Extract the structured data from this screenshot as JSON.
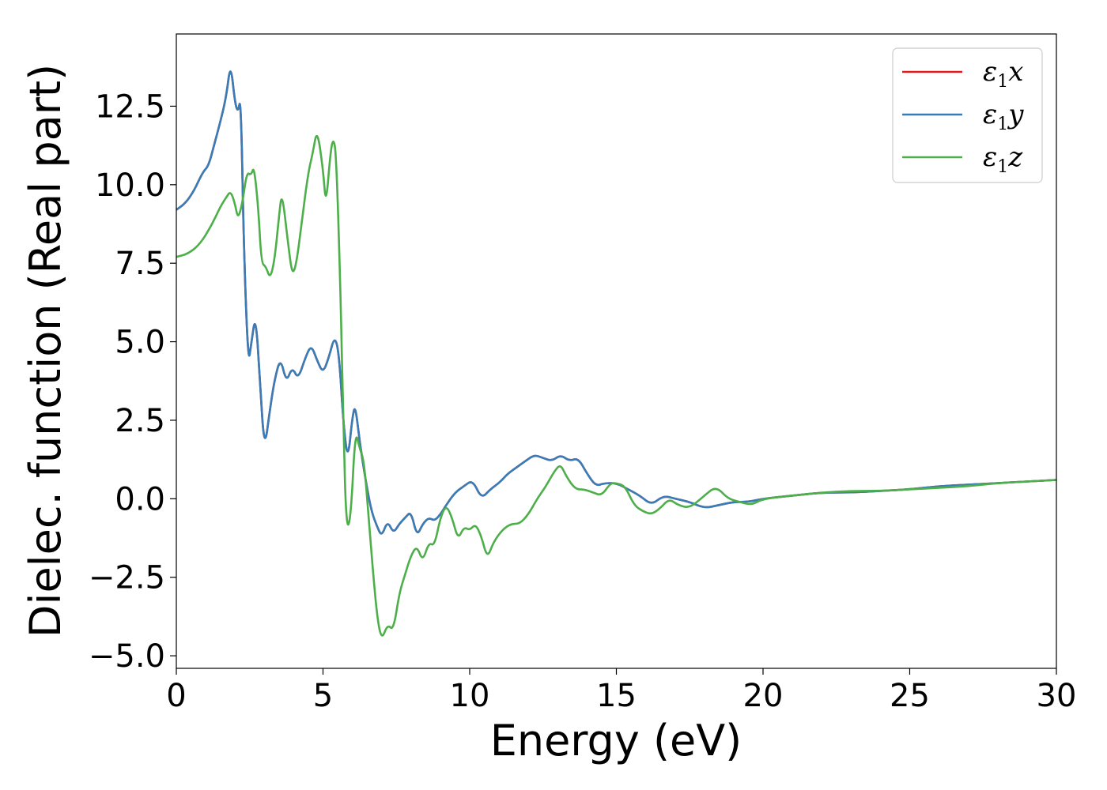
{
  "chart_data": {
    "type": "line",
    "xlabel": "Energy (eV)",
    "ylabel": "Dielec. function (Real part)",
    "xlim": [
      0,
      30
    ],
    "ylim": [
      -5.4,
      14.8
    ],
    "xticks": [
      0,
      5,
      10,
      15,
      20,
      25,
      30
    ],
    "xtick_labels": [
      "0",
      "5",
      "10",
      "15",
      "20",
      "25",
      "30"
    ],
    "yticks": [
      -5.0,
      -2.5,
      0.0,
      2.5,
      5.0,
      7.5,
      10.0,
      12.5
    ],
    "ytick_labels": [
      "−5.0",
      "−2.5",
      "0.0",
      "2.5",
      "5.0",
      "7.5",
      "10.0",
      "12.5"
    ],
    "grid": false,
    "legend_position": "top-right",
    "series": [
      {
        "name": "ε1x",
        "legend_main": "ε",
        "legend_sub": "1",
        "legend_var": "x",
        "color": "#e41a1c",
        "x": [
          0,
          0.3,
          0.6,
          0.9,
          1.1,
          1.3,
          1.5,
          1.7,
          1.85,
          2.0,
          2.1,
          2.2,
          2.3,
          2.45,
          2.55,
          2.7,
          2.85,
          3.0,
          3.2,
          3.35,
          3.55,
          3.75,
          3.95,
          4.15,
          4.4,
          4.6,
          4.8,
          5.0,
          5.2,
          5.4,
          5.55,
          5.7,
          5.85,
          6.0,
          6.1,
          6.25,
          6.45,
          6.65,
          6.85,
          7.0,
          7.2,
          7.4,
          7.6,
          7.8,
          8.0,
          8.2,
          8.4,
          8.6,
          8.8,
          9.0,
          9.2,
          9.5,
          9.8,
          10.1,
          10.4,
          10.7,
          11.0,
          11.3,
          11.6,
          11.9,
          12.2,
          12.5,
          12.8,
          13.1,
          13.4,
          13.7,
          14.0,
          14.3,
          14.6,
          15.0,
          15.4,
          15.8,
          16.2,
          16.6,
          17.0,
          17.5,
          18.0,
          18.5,
          19.0,
          19.5,
          20.0,
          21.0,
          22.0,
          23.0,
          24.0,
          25.0,
          26.0,
          27.0,
          28.0,
          29.0,
          30.0
        ],
        "y": [
          9.2,
          9.4,
          9.8,
          10.4,
          10.6,
          11.3,
          12.0,
          12.8,
          13.9,
          12.6,
          12.3,
          12.8,
          8.0,
          4.3,
          4.9,
          5.9,
          3.8,
          1.5,
          2.9,
          3.8,
          4.5,
          3.7,
          4.2,
          3.8,
          4.5,
          4.9,
          4.4,
          4.0,
          4.5,
          5.2,
          4.6,
          2.3,
          1.2,
          2.6,
          3.0,
          1.8,
          0.6,
          -0.4,
          -0.9,
          -1.2,
          -0.7,
          -1.1,
          -0.8,
          -0.6,
          -0.4,
          -1.2,
          -0.8,
          -0.6,
          -0.7,
          -0.5,
          -0.2,
          0.2,
          0.4,
          0.6,
          0.0,
          0.3,
          0.5,
          0.8,
          1.0,
          1.2,
          1.4,
          1.3,
          1.2,
          1.4,
          1.2,
          1.3,
          0.8,
          0.4,
          0.5,
          0.5,
          0.3,
          0.1,
          -0.2,
          0.1,
          0.0,
          -0.1,
          -0.3,
          -0.2,
          -0.1,
          -0.1,
          0.0,
          0.1,
          0.2,
          0.2,
          0.25,
          0.3,
          0.4,
          0.45,
          0.5,
          0.55,
          0.6
        ]
      },
      {
        "name": "ε1y",
        "legend_main": "ε",
        "legend_sub": "1",
        "legend_var": "y",
        "color": "#377eb8",
        "x": [
          0,
          0.3,
          0.6,
          0.9,
          1.1,
          1.3,
          1.5,
          1.7,
          1.85,
          2.0,
          2.1,
          2.2,
          2.3,
          2.45,
          2.55,
          2.7,
          2.85,
          3.0,
          3.2,
          3.35,
          3.55,
          3.75,
          3.95,
          4.15,
          4.4,
          4.6,
          4.8,
          5.0,
          5.2,
          5.4,
          5.55,
          5.7,
          5.85,
          6.0,
          6.1,
          6.25,
          6.45,
          6.65,
          6.85,
          7.0,
          7.2,
          7.4,
          7.6,
          7.8,
          8.0,
          8.2,
          8.4,
          8.6,
          8.8,
          9.0,
          9.2,
          9.5,
          9.8,
          10.1,
          10.4,
          10.7,
          11.0,
          11.3,
          11.6,
          11.9,
          12.2,
          12.5,
          12.8,
          13.1,
          13.4,
          13.7,
          14.0,
          14.3,
          14.6,
          15.0,
          15.4,
          15.8,
          16.2,
          16.6,
          17.0,
          17.5,
          18.0,
          18.5,
          19.0,
          19.5,
          20.0,
          21.0,
          22.0,
          23.0,
          24.0,
          25.0,
          26.0,
          27.0,
          28.0,
          29.0,
          30.0
        ],
        "y": [
          9.2,
          9.4,
          9.8,
          10.4,
          10.6,
          11.3,
          12.0,
          12.8,
          13.9,
          12.6,
          12.3,
          12.8,
          8.0,
          4.3,
          4.9,
          5.9,
          3.8,
          1.5,
          2.9,
          3.8,
          4.5,
          3.7,
          4.2,
          3.8,
          4.5,
          4.9,
          4.4,
          4.0,
          4.5,
          5.2,
          4.6,
          2.3,
          1.2,
          2.6,
          3.0,
          1.8,
          0.6,
          -0.4,
          -0.9,
          -1.2,
          -0.7,
          -1.1,
          -0.8,
          -0.6,
          -0.4,
          -1.2,
          -0.8,
          -0.6,
          -0.7,
          -0.5,
          -0.2,
          0.2,
          0.4,
          0.6,
          0.0,
          0.3,
          0.5,
          0.8,
          1.0,
          1.2,
          1.4,
          1.3,
          1.2,
          1.4,
          1.2,
          1.3,
          0.8,
          0.4,
          0.5,
          0.5,
          0.3,
          0.1,
          -0.2,
          0.1,
          0.0,
          -0.1,
          -0.3,
          -0.2,
          -0.1,
          -0.1,
          0.0,
          0.1,
          0.2,
          0.2,
          0.25,
          0.3,
          0.4,
          0.45,
          0.5,
          0.55,
          0.6
        ]
      },
      {
        "name": "ε1z",
        "legend_main": "ε",
        "legend_sub": "1",
        "legend_var": "z",
        "color": "#4daf4a",
        "x": [
          0,
          0.4,
          0.8,
          1.2,
          1.5,
          1.7,
          1.85,
          2.0,
          2.1,
          2.25,
          2.4,
          2.55,
          2.65,
          2.8,
          2.9,
          3.05,
          3.2,
          3.35,
          3.5,
          3.6,
          3.8,
          3.95,
          4.1,
          4.3,
          4.5,
          4.65,
          4.8,
          5.0,
          5.1,
          5.25,
          5.35,
          5.45,
          5.6,
          5.7,
          5.8,
          5.95,
          6.1,
          6.25,
          6.4,
          6.55,
          6.7,
          6.85,
          7.0,
          7.2,
          7.4,
          7.6,
          7.8,
          8.0,
          8.2,
          8.4,
          8.6,
          8.8,
          9.0,
          9.2,
          9.4,
          9.6,
          9.8,
          10.0,
          10.2,
          10.4,
          10.6,
          10.8,
          11.1,
          11.4,
          11.7,
          12.0,
          12.3,
          12.6,
          12.9,
          13.1,
          13.3,
          13.6,
          13.9,
          14.2,
          14.5,
          14.8,
          15.0,
          15.3,
          15.6,
          15.9,
          16.2,
          16.5,
          16.8,
          17.1,
          17.5,
          18.0,
          18.4,
          18.8,
          19.2,
          19.6,
          20.0,
          21.0,
          22.0,
          23.0,
          24.0,
          25.0,
          26.0,
          27.0,
          28.0,
          29.0,
          30.0
        ],
        "y": [
          7.7,
          7.8,
          8.1,
          8.7,
          9.3,
          9.6,
          9.8,
          9.4,
          8.9,
          9.4,
          10.4,
          10.3,
          10.6,
          9.2,
          7.5,
          7.4,
          7.0,
          7.6,
          9.0,
          9.8,
          8.2,
          7.1,
          7.5,
          9.0,
          10.4,
          11.0,
          11.8,
          10.5,
          9.3,
          11.0,
          11.5,
          11.0,
          6.5,
          2.0,
          -1.0,
          -0.6,
          2.2,
          1.6,
          1.2,
          -0.5,
          -2.3,
          -3.8,
          -4.5,
          -4.0,
          -4.2,
          -3.0,
          -2.4,
          -1.8,
          -1.5,
          -2.0,
          -1.4,
          -1.5,
          -0.6,
          -0.2,
          -0.6,
          -1.3,
          -0.9,
          -1.0,
          -0.8,
          -1.2,
          -1.9,
          -1.4,
          -1.0,
          -0.8,
          -0.8,
          -0.5,
          0.0,
          0.4,
          0.9,
          1.1,
          0.7,
          0.3,
          0.3,
          0.2,
          0.1,
          0.5,
          0.5,
          0.4,
          -0.2,
          -0.4,
          -0.5,
          -0.3,
          0.0,
          -0.2,
          -0.3,
          0.1,
          0.4,
          0.0,
          -0.1,
          -0.2,
          0.0,
          0.1,
          0.2,
          0.25,
          0.25,
          0.3,
          0.35,
          0.4,
          0.5,
          0.55,
          0.6
        ]
      }
    ]
  }
}
